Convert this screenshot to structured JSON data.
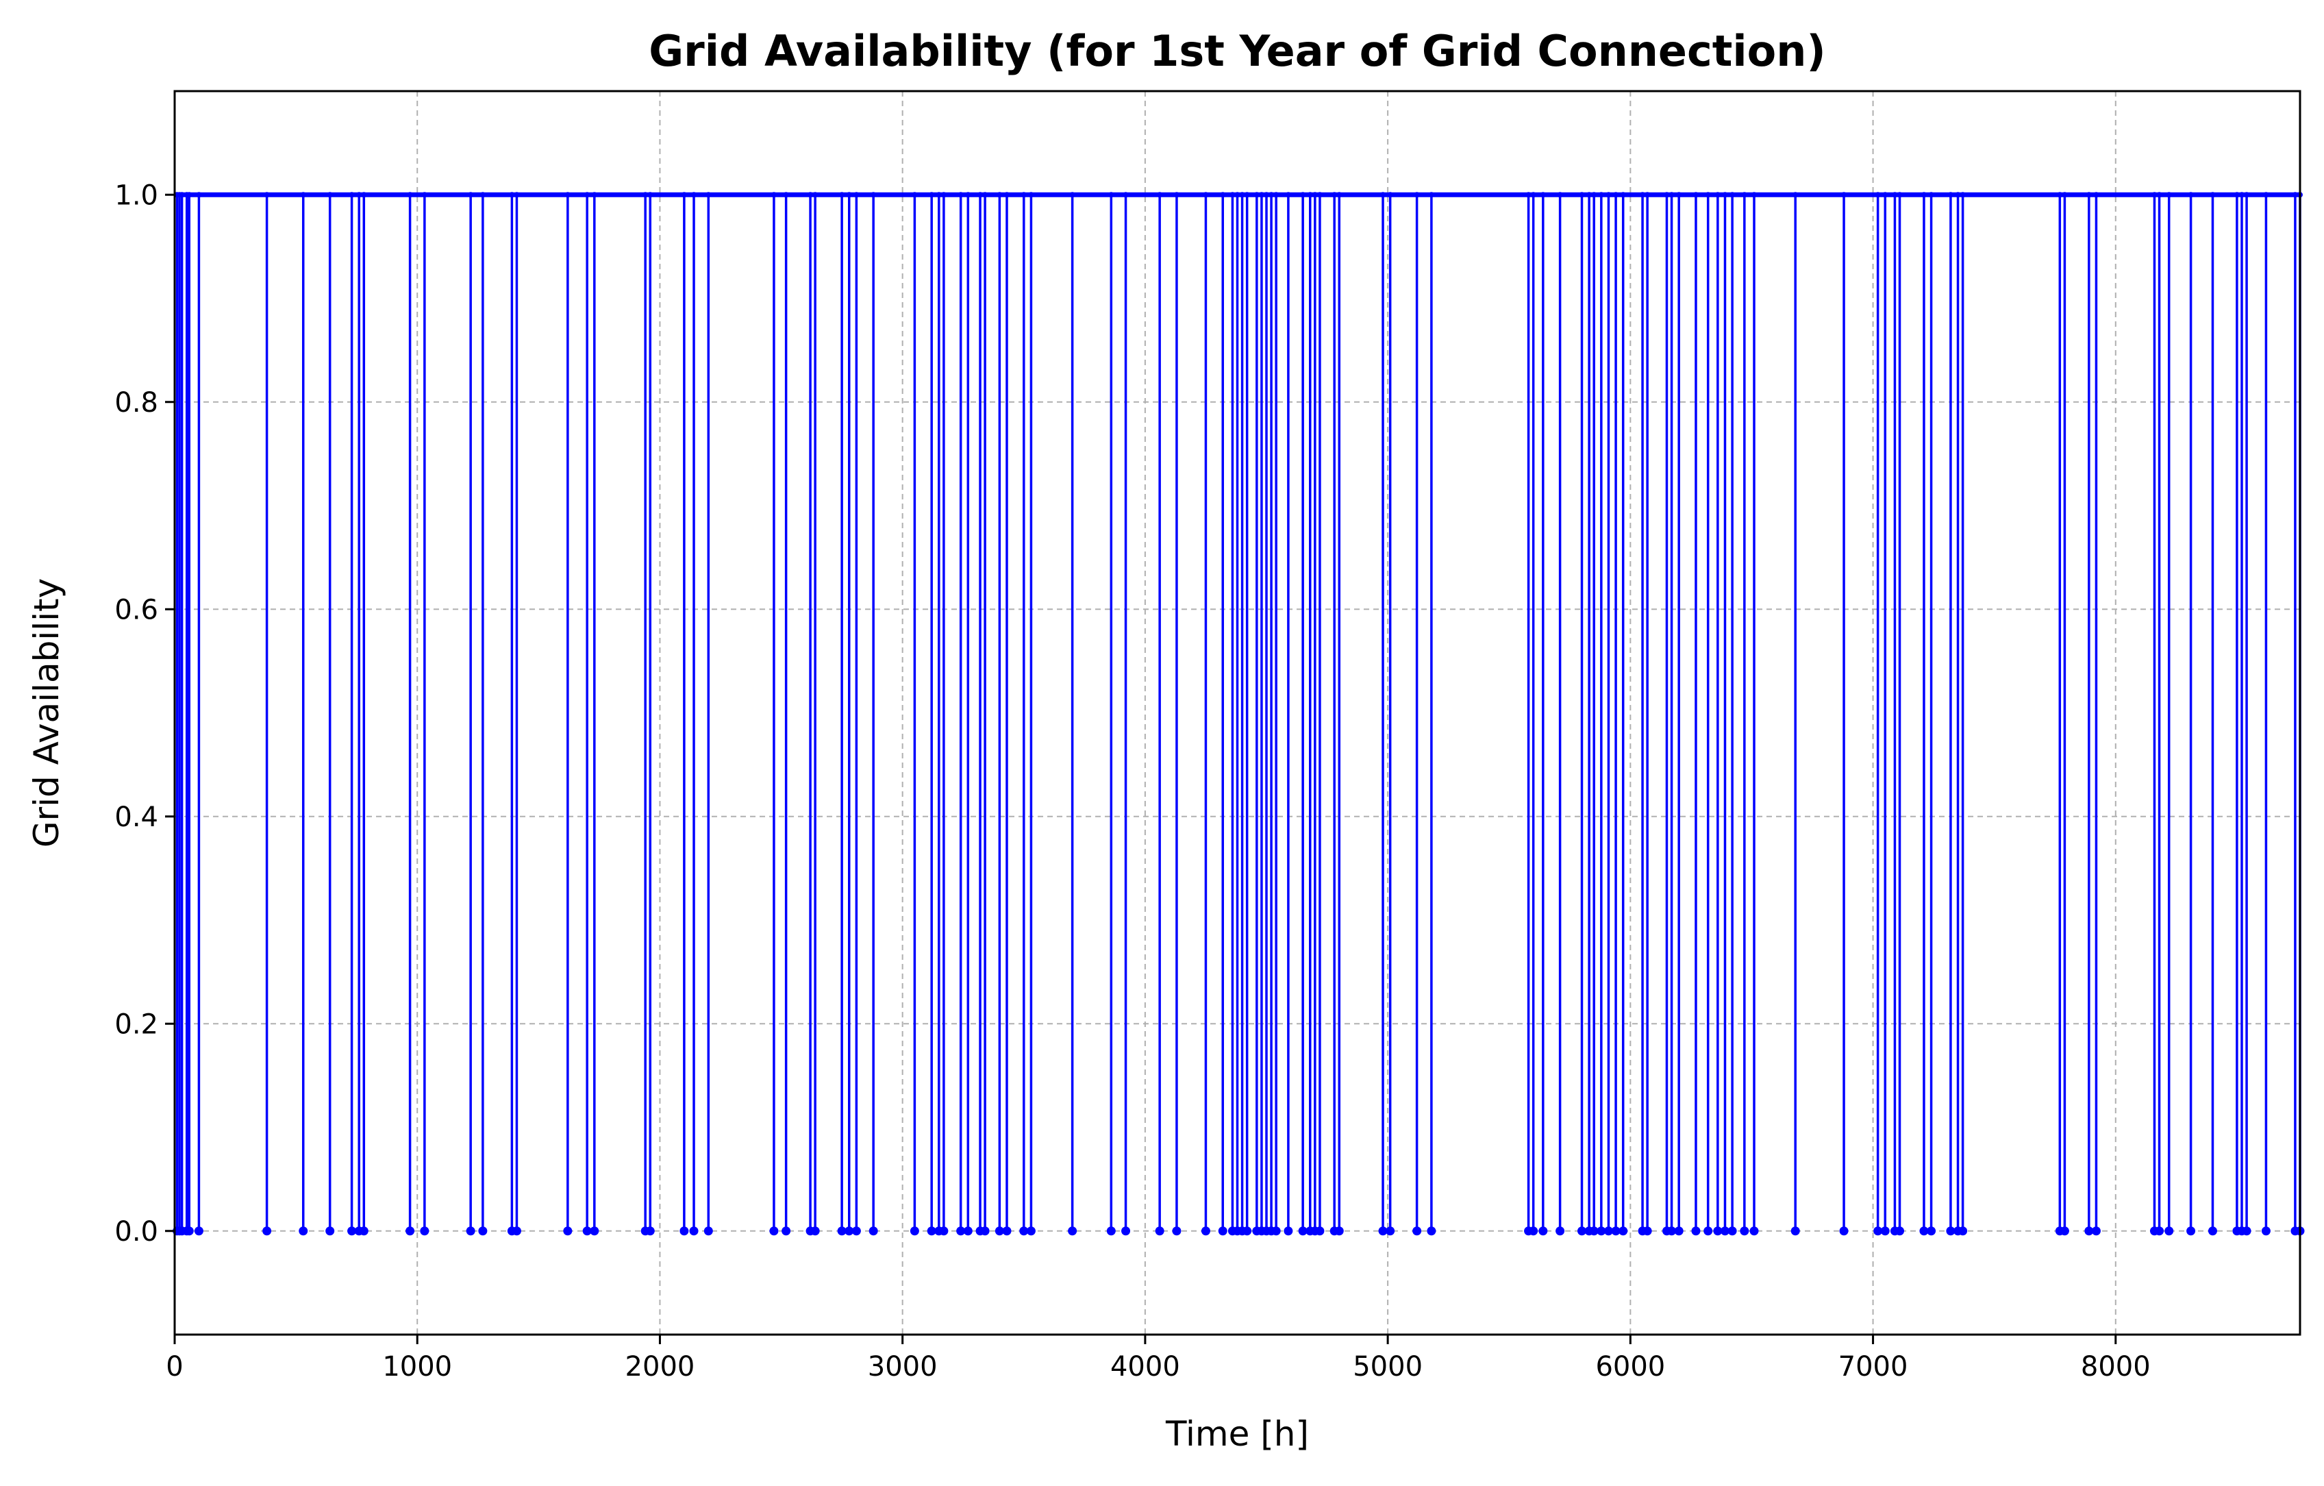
{
  "chart_data": {
    "type": "line",
    "title": "Grid Availability (for 1st Year of Grid Connection)",
    "xlabel": "Time [h]",
    "ylabel": "Grid Availability",
    "xlim": [
      0,
      8760
    ],
    "ylim": [
      -0.1,
      1.1
    ],
    "x_ticks": [
      0,
      1000,
      2000,
      3000,
      4000,
      5000,
      6000,
      7000,
      8000
    ],
    "y_ticks": [
      0.0,
      0.2,
      0.4,
      0.6,
      0.8,
      1.0
    ],
    "x_tick_labels": [
      "0",
      "1000",
      "2000",
      "3000",
      "4000",
      "5000",
      "6000",
      "7000",
      "8000"
    ],
    "y_tick_labels": [
      "0.0",
      "0.2",
      "0.4",
      "0.6",
      "0.8",
      "1.0"
    ],
    "grid": true,
    "color": "#0000ff",
    "series": [
      {
        "baseline_value": 1,
        "outage_value": 0,
        "outage_hours": [
          10,
          20,
          30,
          50,
          60,
          100,
          380,
          530,
          640,
          730,
          760,
          780,
          970,
          1030,
          1220,
          1270,
          1390,
          1410,
          1620,
          1700,
          1730,
          1940,
          1960,
          2100,
          2140,
          2200,
          2470,
          2520,
          2620,
          2640,
          2750,
          2780,
          2810,
          2880,
          3050,
          3120,
          3150,
          3170,
          3240,
          3270,
          3320,
          3340,
          3400,
          3430,
          3500,
          3530,
          3700,
          3860,
          3920,
          4060,
          4130,
          4250,
          4320,
          4360,
          4380,
          4400,
          4420,
          4460,
          4480,
          4500,
          4520,
          4540,
          4590,
          4650,
          4680,
          4700,
          4720,
          4780,
          4800,
          4980,
          5010,
          5120,
          5180,
          5580,
          5600,
          5640,
          5710,
          5800,
          5830,
          5850,
          5880,
          5910,
          5940,
          5970,
          6050,
          6070,
          6150,
          6170,
          6200,
          6270,
          6320,
          6360,
          6390,
          6420,
          6470,
          6510,
          6680,
          6880,
          7020,
          7050,
          7090,
          7110,
          7210,
          7240,
          7320,
          7350,
          7370,
          7770,
          7790,
          7890,
          7920,
          8160,
          8180,
          8220,
          8310,
          8400,
          8500,
          8520,
          8540,
          8620,
          8740,
          8760
        ]
      }
    ]
  }
}
